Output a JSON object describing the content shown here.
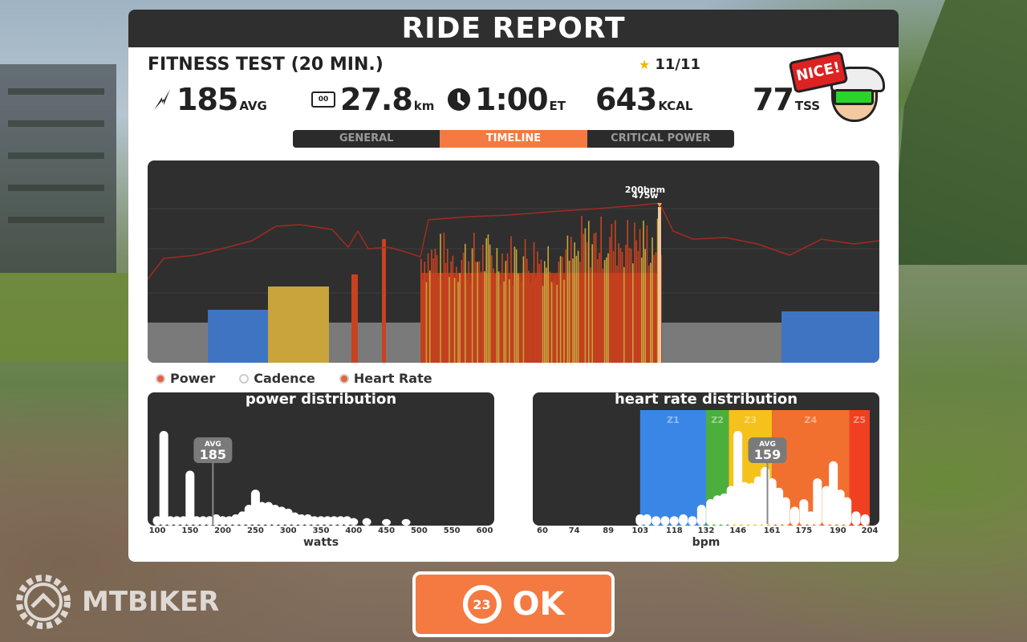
{
  "header": {
    "title": "RIDE REPORT"
  },
  "workout": {
    "title": "FITNESS TEST (20 MIN.)",
    "stars": "11/11"
  },
  "stats": {
    "power": {
      "value": "185",
      "unit": "AVG"
    },
    "distance": {
      "value": "27.8",
      "unit": "km",
      "icon_text": "00"
    },
    "time": {
      "value": "1:00",
      "unit": "ET"
    },
    "calories": {
      "value": "643",
      "unit": "KCAL"
    },
    "tss": {
      "value": "77",
      "unit": "TSS"
    }
  },
  "badge": {
    "text": "NICE!"
  },
  "tabs": [
    {
      "label": "GENERAL",
      "active": false
    },
    {
      "label": "TIMELINE",
      "active": true
    },
    {
      "label": "CRITICAL POWER",
      "active": false
    }
  ],
  "timeline": {
    "peak_hr_label": "200bpm",
    "peak_power_label": "475w",
    "zone_colors": {
      "gray": "#7a7a7a",
      "blue": "#3f74c2",
      "yellow": "#c9a43a",
      "red": "#c9421f",
      "hr_line": "#a22a22"
    }
  },
  "legend": {
    "power": "Power",
    "cadence": "Cadence",
    "heart_rate": "Heart Rate"
  },
  "chart_data": [
    {
      "type": "bar",
      "title": "power distribution",
      "xlabel": "watts",
      "ylabel": "",
      "x_ticks": [
        "100",
        "150",
        "200",
        "250",
        "300",
        "350",
        "400",
        "450",
        "500",
        "550",
        "600"
      ],
      "xlim": [
        100,
        600
      ],
      "avg_label": "AVG",
      "avg_value": "185",
      "avg_x": 185,
      "x": [
        100,
        110,
        120,
        130,
        140,
        150,
        160,
        170,
        180,
        190,
        200,
        210,
        220,
        230,
        240,
        250,
        260,
        270,
        280,
        290,
        300,
        310,
        320,
        330,
        340,
        350,
        360,
        370,
        380,
        390,
        400,
        420,
        450,
        480
      ],
      "values": [
        0.1,
        1.0,
        0.1,
        0.1,
        0.1,
        0.58,
        0.1,
        0.1,
        0.1,
        0.12,
        0.1,
        0.1,
        0.12,
        0.15,
        0.22,
        0.38,
        0.25,
        0.25,
        0.22,
        0.2,
        0.18,
        0.14,
        0.12,
        0.12,
        0.1,
        0.1,
        0.1,
        0.1,
        0.1,
        0.1,
        0.08,
        0.08,
        0.07,
        0.07
      ]
    },
    {
      "type": "bar",
      "title": "heart rate distribution",
      "xlabel": "bpm",
      "ylabel": "",
      "x_ticks": [
        "60",
        "74",
        "89",
        "103",
        "118",
        "132",
        "146",
        "161",
        "175",
        "190",
        "204"
      ],
      "xlim": [
        60,
        204
      ],
      "avg_label": "AVG",
      "avg_value": "159",
      "avg_x": 159,
      "zones": [
        {
          "name": "Z1",
          "from": 103,
          "to": 132,
          "color": "#3a86e6"
        },
        {
          "name": "Z2",
          "from": 132,
          "to": 142,
          "color": "#4caf3c"
        },
        {
          "name": "Z3",
          "from": 142,
          "to": 161,
          "color": "#f5c21b"
        },
        {
          "name": "Z4",
          "from": 161,
          "to": 195,
          "color": "#f2702f"
        },
        {
          "name": "Z5",
          "from": 195,
          "to": 204,
          "color": "#f04021"
        }
      ],
      "x": [
        103,
        106,
        110,
        114,
        118,
        122,
        126,
        130,
        134,
        137,
        140,
        143,
        146,
        149,
        152,
        155,
        158,
        161,
        164,
        167,
        171,
        175,
        178,
        181,
        185,
        188,
        191,
        194,
        198,
        202
      ],
      "values": [
        0.12,
        0.12,
        0.1,
        0.1,
        0.1,
        0.12,
        0.1,
        0.22,
        0.28,
        0.32,
        0.34,
        0.42,
        1.0,
        0.46,
        0.45,
        0.52,
        0.62,
        0.5,
        0.4,
        0.3,
        0.2,
        0.28,
        0.15,
        0.5,
        0.42,
        0.68,
        0.38,
        0.3,
        0.15,
        0.12
      ]
    }
  ],
  "ok_button": {
    "label": "OK",
    "timer": "23"
  },
  "watermark": {
    "text": "MTBIKER"
  }
}
